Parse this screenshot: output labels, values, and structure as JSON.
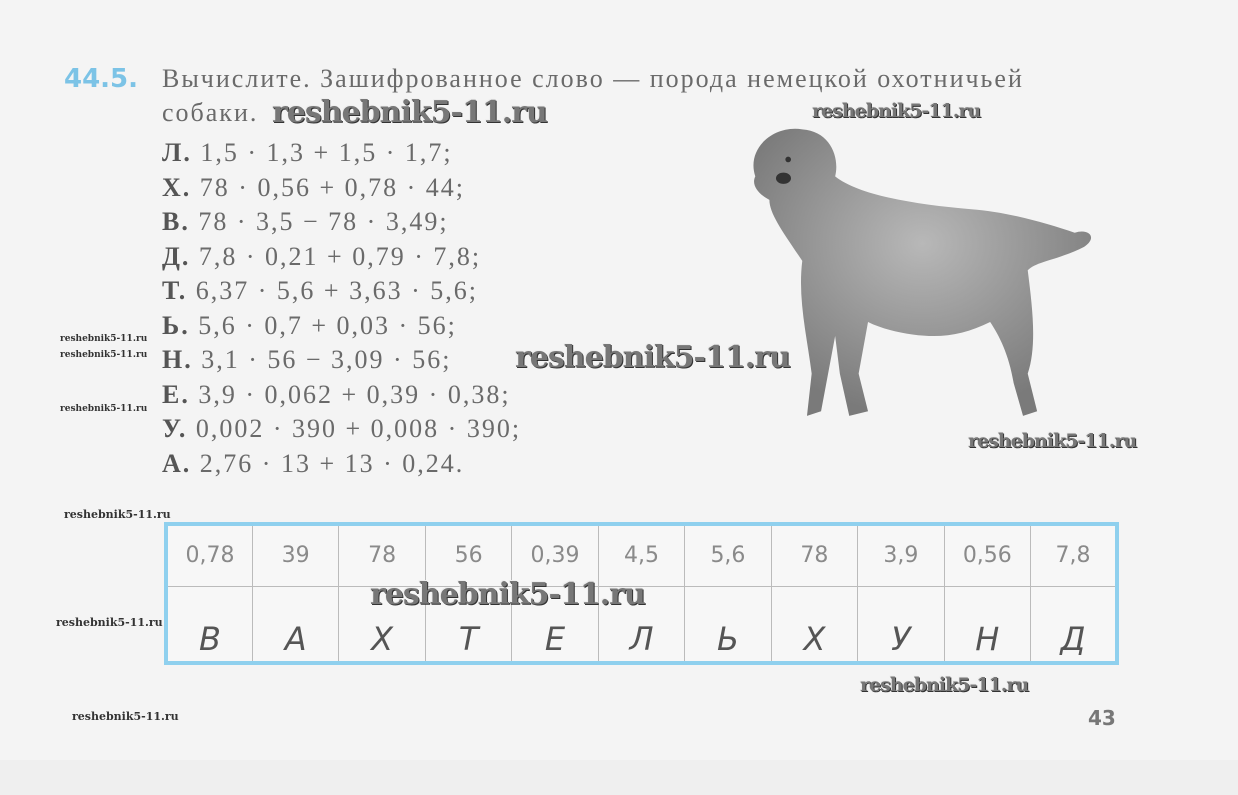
{
  "exercise": {
    "number": "44.5.",
    "prompt_line1": "Вычислите. Зашифрованное слово — порода немецкой охотничьей",
    "prompt_line2": "собаки.",
    "items": [
      {
        "letter": "Л.",
        "expr": "1,5 · 1,3 + 1,5 · 1,7;"
      },
      {
        "letter": "Х.",
        "expr": "78 · 0,56 + 0,78 · 44;"
      },
      {
        "letter": "В.",
        "expr": "78 · 3,5 − 78 · 3,49;"
      },
      {
        "letter": "Д.",
        "expr": "7,8 · 0,21 + 0,79 · 7,8;"
      },
      {
        "letter": "Т.",
        "expr": "6,37 · 5,6 + 3,63 · 5,6;"
      },
      {
        "letter": "Ь.",
        "expr": "5,6 · 0,7 + 0,03 · 56;"
      },
      {
        "letter": "Н.",
        "expr": "3,1 · 56 − 3,09 · 56;"
      },
      {
        "letter": "Е.",
        "expr": "3,9 · 0,062 + 0,39 · 0,38;"
      },
      {
        "letter": "У.",
        "expr": "0,002 · 390 + 0,008 · 390;"
      },
      {
        "letter": "А.",
        "expr": "2,76 · 13 + 13 · 0,24."
      }
    ]
  },
  "code_table": {
    "values": [
      "0,78",
      "39",
      "78",
      "56",
      "0,39",
      "4,5",
      "5,6",
      "78",
      "3,9",
      "0,56",
      "7,8"
    ],
    "answers": [
      "В",
      "А",
      "Х",
      "Т",
      "Е",
      "Л",
      "Ь",
      "Х",
      "У",
      "Н",
      "Д"
    ],
    "border_color": "#8fd0ee"
  },
  "watermark": "reshebnik5-11.ru",
  "page_number": "43",
  "illustration": "dog-image"
}
